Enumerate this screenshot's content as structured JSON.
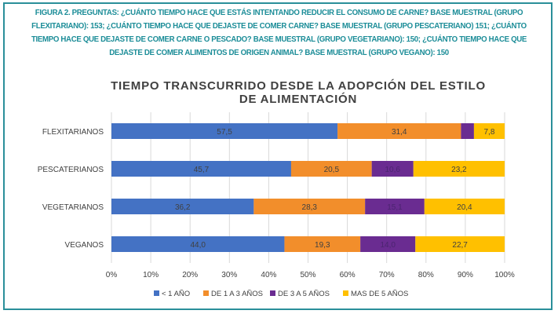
{
  "figure_caption": "FIGURA 2. PREGUNTAS: ¿CUÁNTO TIEMPO HACE QUE ESTÁS INTENTANDO REDUCIR EL CONSUMO DE CARNE? BASE MUESTRAL (GRUPO FLEXITARIANO): 153; ¿CUÁNTO TIEMPO HACE QUE DEJASTE DE COMER CARNE? BASE MUESTRAL (GRUPO PESCATERIANO) 151; ¿CUÁNTO TIEMPO HACE QUE DEJASTE DE COMER CARNE O PESCADO? BASE MUESTRAL (GRUPO VEGETARIANO): 150; ¿CUÁNTO TIEMPO HACE QUE DEJASTE DE COMER ALIMENTOS DE ORIGEN ANIMAL? BASE MUESTRAL (GRUPO VEGANO): 150",
  "chart_data": {
    "type": "bar",
    "orientation": "horizontal",
    "stacked": "percent",
    "title_line1": "TIEMPO TRANSCURRIDO DESDE LA ADOPCIÓN DEL ESTILO",
    "title_line2": "DE ALIMENTACIÓN",
    "categories": [
      "FLEXITARIANOS",
      "PESCATERIANOS",
      "VEGETARIANOS",
      "VEGANOS"
    ],
    "series": [
      {
        "name": "< 1 AÑO",
        "color": "#4472c4",
        "values": [
          57.5,
          45.7,
          36.2,
          44.0
        ],
        "labels": [
          "57,5",
          "45,7",
          "36,2",
          "44,0"
        ]
      },
      {
        "name": "DE 1 A 3 AÑOS",
        "color": "#f28e2b",
        "values": [
          31.4,
          20.5,
          28.3,
          19.3
        ],
        "labels": [
          "31,4",
          "20,5",
          "28,3",
          "19,3"
        ]
      },
      {
        "name": "DE 3 A 5 AÑOS",
        "color": "#6a2c91",
        "values": [
          3.3,
          10.6,
          15.1,
          14.0
        ],
        "labels": [
          "",
          "10,6",
          "15,1",
          "14,0"
        ]
      },
      {
        "name": "MAS DE 5 AÑOS",
        "color": "#ffc000",
        "values": [
          7.8,
          23.2,
          20.4,
          22.7
        ],
        "labels": [
          "7,8",
          "23,2",
          "20,4",
          "22,7"
        ]
      }
    ],
    "xlim": [
      0,
      100
    ],
    "xticks": [
      "0%",
      "10%",
      "20%",
      "30%",
      "40%",
      "50%",
      "60%",
      "70%",
      "80%",
      "90%",
      "100%"
    ],
    "grid": true,
    "legend": "bottom"
  }
}
